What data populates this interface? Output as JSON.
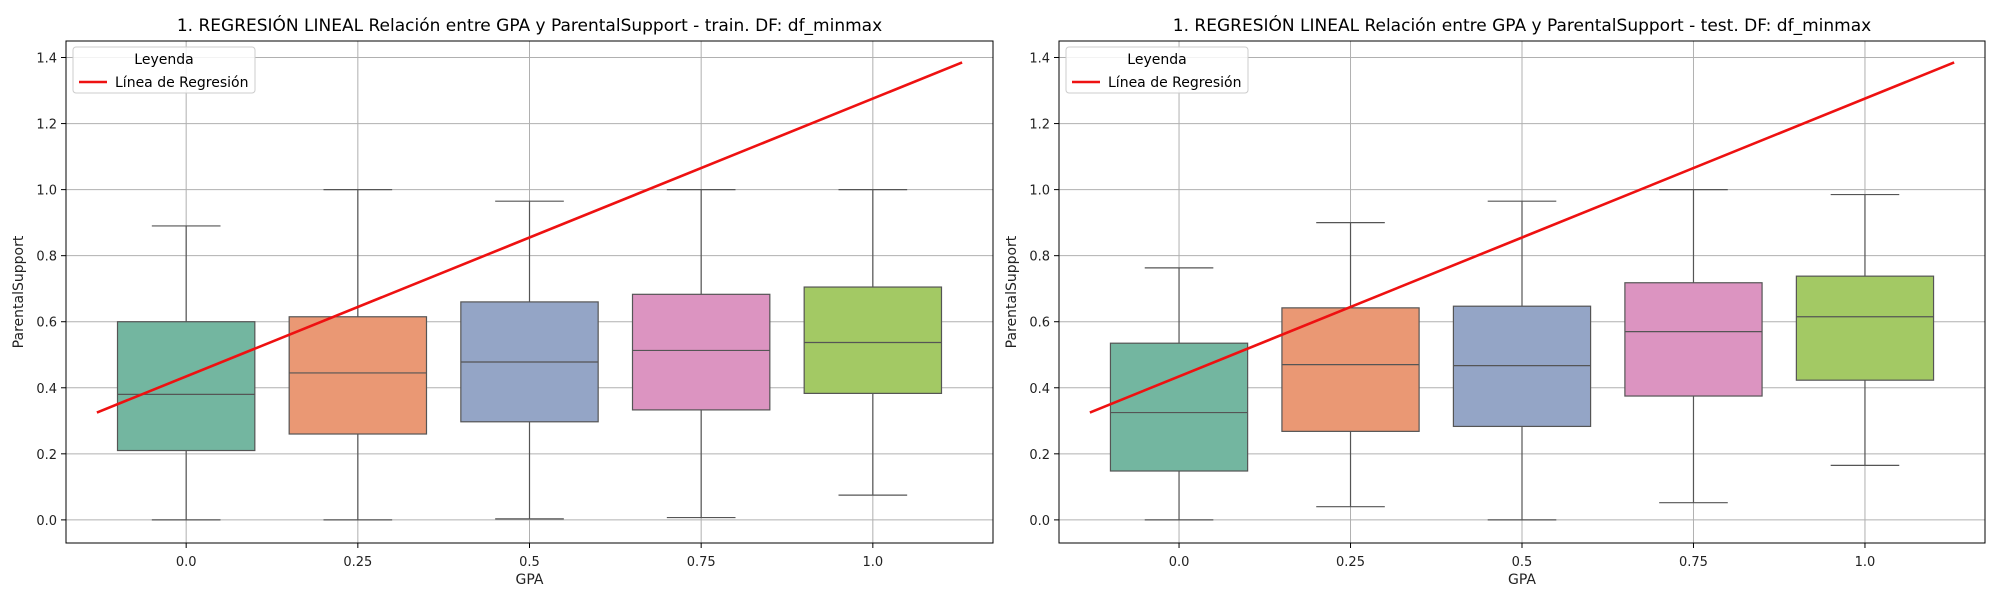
{
  "chart_data": [
    {
      "type": "box",
      "title": "1. REGRESIÓN LINEAL Relación entre GPA y ParentalSupport - train. DF: df_minmax",
      "xlabel": "GPA",
      "ylabel": "ParentalSupport",
      "categories": [
        "0.0",
        "0.25",
        "0.5",
        "0.75",
        "1.0"
      ],
      "ylim": [
        -0.07,
        1.45
      ],
      "yticks": [
        "0.0",
        "0.2",
        "0.4",
        "0.6",
        "0.8",
        "1.0",
        "1.2",
        "1.4"
      ],
      "grid": true,
      "boxes": [
        {
          "category": "0.0",
          "whisker_low": 0.0,
          "q1": 0.21,
          "median": 0.38,
          "q3": 0.6,
          "whisker_high": 0.89,
          "color": "#73b6a0"
        },
        {
          "category": "0.25",
          "whisker_low": 0.0,
          "q1": 0.26,
          "median": 0.445,
          "q3": 0.615,
          "whisker_high": 1.0,
          "color": "#ea9874"
        },
        {
          "category": "0.5",
          "whisker_low": 0.003,
          "q1": 0.297,
          "median": 0.478,
          "q3": 0.66,
          "whisker_high": 0.965,
          "color": "#94a5c6"
        },
        {
          "category": "0.75",
          "whisker_low": 0.007,
          "q1": 0.333,
          "median": 0.513,
          "q3": 0.683,
          "whisker_high": 1.0,
          "color": "#dc94c1"
        },
        {
          "category": "1.0",
          "whisker_low": 0.075,
          "q1": 0.383,
          "median": 0.537,
          "q3": 0.705,
          "whisker_high": 1.0,
          "color": "#a3c964"
        }
      ],
      "regression_line": {
        "x": [
          -0.52,
          4.52
        ],
        "y": [
          0.325,
          1.385
        ],
        "color": "#ee1111"
      },
      "legend": {
        "title": "Leyenda",
        "entries": [
          "Línea de Regresión"
        ],
        "placement": "top-left"
      }
    },
    {
      "type": "box",
      "title": "1. REGRESIÓN LINEAL Relación entre GPA y ParentalSupport - test. DF: df_minmax",
      "xlabel": "GPA",
      "ylabel": "ParentalSupport",
      "categories": [
        "0.0",
        "0.25",
        "0.5",
        "0.75",
        "1.0"
      ],
      "ylim": [
        -0.07,
        1.45
      ],
      "yticks": [
        "0.0",
        "0.2",
        "0.4",
        "0.6",
        "0.8",
        "1.0",
        "1.2",
        "1.4"
      ],
      "grid": true,
      "boxes": [
        {
          "category": "0.0",
          "whisker_low": 0.0,
          "q1": 0.148,
          "median": 0.325,
          "q3": 0.535,
          "whisker_high": 0.763,
          "color": "#73b6a0"
        },
        {
          "category": "0.25",
          "whisker_low": 0.04,
          "q1": 0.268,
          "median": 0.47,
          "q3": 0.642,
          "whisker_high": 0.9,
          "color": "#ea9874"
        },
        {
          "category": "0.5",
          "whisker_low": 0.0,
          "q1": 0.283,
          "median": 0.467,
          "q3": 0.647,
          "whisker_high": 0.965,
          "color": "#94a5c6"
        },
        {
          "category": "0.75",
          "whisker_low": 0.052,
          "q1": 0.375,
          "median": 0.57,
          "q3": 0.718,
          "whisker_high": 1.0,
          "color": "#dc94c1"
        },
        {
          "category": "1.0",
          "whisker_low": 0.165,
          "q1": 0.423,
          "median": 0.615,
          "q3": 0.738,
          "whisker_high": 0.985,
          "color": "#a3c964"
        }
      ],
      "regression_line": {
        "x": [
          -0.52,
          4.52
        ],
        "y": [
          0.325,
          1.385
        ],
        "color": "#ee1111"
      },
      "legend": {
        "title": "Leyenda",
        "entries": [
          "Línea de Regresión"
        ],
        "placement": "top-left"
      }
    }
  ]
}
